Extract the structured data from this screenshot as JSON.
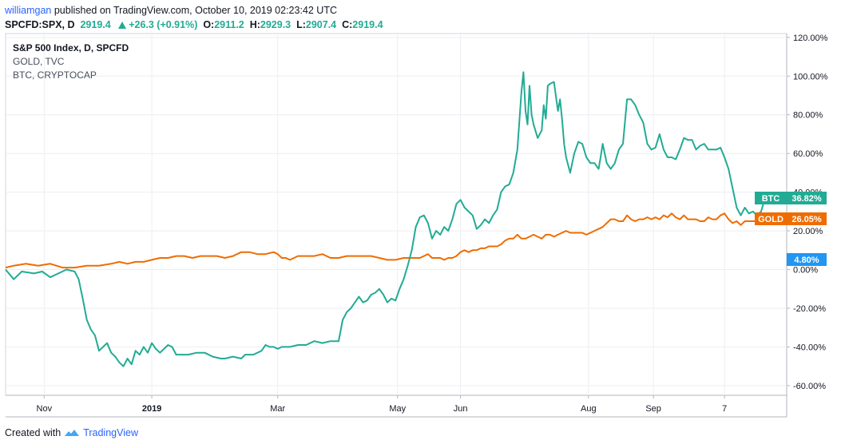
{
  "header": {
    "author": "williamgan",
    "published": "published on TradingView.com, October 10, 2019 02:23:42 UTC"
  },
  "ohlc": {
    "symbol": "SPCFD:SPX, D",
    "last": "2919.4",
    "change": "+26.3 (+0.91%)",
    "o_label": "O:",
    "o": "2911.2",
    "h_label": "H:",
    "h": "2929.3",
    "l_label": "L:",
    "l": "2907.4",
    "c_label": "C:",
    "c": "2919.4"
  },
  "legend": {
    "main": "S&P 500 Index, D, SPCFD",
    "second": "GOLD, TVC",
    "third": "BTC, CRYPTOCAP"
  },
  "footer": {
    "created_with": "Created with",
    "brand": "TradingView"
  },
  "chart_data": {
    "type": "line",
    "ylim": [
      -65,
      122
    ],
    "y_ticks": [
      "120.00%",
      "100.00%",
      "80.00%",
      "60.00%",
      "40.00%",
      "20.00%",
      "0.00%",
      "-20.00%",
      "-40.00%",
      "-60.00%"
    ],
    "y_tick_values": [
      120,
      100,
      80,
      60,
      40,
      20,
      0,
      -20,
      -40,
      -60
    ],
    "x_ticks": [
      {
        "label": "Nov",
        "x": 19
      },
      {
        "label": "2019",
        "x": 72
      },
      {
        "label": "Mar",
        "x": 134
      },
      {
        "label": "May",
        "x": 193
      },
      {
        "label": "Jun",
        "x": 224
      },
      {
        "label": "Aug",
        "x": 287
      },
      {
        "label": "Sep",
        "x": 319
      },
      {
        "label": "7",
        "x": 354
      }
    ],
    "x_range": [
      0,
      374
    ],
    "series": [
      {
        "name": "BTC",
        "color": "#22ab94",
        "last_label": "36.82%",
        "points": [
          [
            0,
            0
          ],
          [
            4,
            -5
          ],
          [
            8,
            -1
          ],
          [
            14,
            -2
          ],
          [
            18,
            -1
          ],
          [
            22,
            -4
          ],
          [
            26,
            -2
          ],
          [
            30,
            0
          ],
          [
            34,
            -1
          ],
          [
            36,
            -5
          ],
          [
            38,
            -15
          ],
          [
            40,
            -26
          ],
          [
            42,
            -31
          ],
          [
            44,
            -34
          ],
          [
            46,
            -42
          ],
          [
            48,
            -40
          ],
          [
            50,
            -38
          ],
          [
            52,
            -43
          ],
          [
            54,
            -45
          ],
          [
            56,
            -48
          ],
          [
            58,
            -50
          ],
          [
            60,
            -46
          ],
          [
            62,
            -49
          ],
          [
            64,
            -42
          ],
          [
            66,
            -44
          ],
          [
            68,
            -40
          ],
          [
            70,
            -43
          ],
          [
            72,
            -38
          ],
          [
            74,
            -41
          ],
          [
            76,
            -43
          ],
          [
            78,
            -41
          ],
          [
            80,
            -39
          ],
          [
            82,
            -40
          ],
          [
            84,
            -44
          ],
          [
            86,
            -44
          ],
          [
            90,
            -44
          ],
          [
            94,
            -43
          ],
          [
            98,
            -43
          ],
          [
            102,
            -45
          ],
          [
            106,
            -46
          ],
          [
            108,
            -46
          ],
          [
            112,
            -45
          ],
          [
            116,
            -46
          ],
          [
            118,
            -44
          ],
          [
            122,
            -44
          ],
          [
            126,
            -42
          ],
          [
            128,
            -39
          ],
          [
            130,
            -40
          ],
          [
            132,
            -40
          ],
          [
            134,
            -41
          ],
          [
            136,
            -40
          ],
          [
            140,
            -40
          ],
          [
            144,
            -39
          ],
          [
            148,
            -39
          ],
          [
            152,
            -37
          ],
          [
            156,
            -38
          ],
          [
            160,
            -37
          ],
          [
            164,
            -37
          ],
          [
            166,
            -26
          ],
          [
            168,
            -22
          ],
          [
            170,
            -20
          ],
          [
            172,
            -17
          ],
          [
            174,
            -14
          ],
          [
            176,
            -17
          ],
          [
            178,
            -16
          ],
          [
            180,
            -13
          ],
          [
            182,
            -12
          ],
          [
            184,
            -10
          ],
          [
            186,
            -13
          ],
          [
            188,
            -17
          ],
          [
            190,
            -15
          ],
          [
            192,
            -16
          ],
          [
            194,
            -10
          ],
          [
            196,
            -5
          ],
          [
            198,
            2
          ],
          [
            200,
            10
          ],
          [
            202,
            22
          ],
          [
            204,
            27
          ],
          [
            206,
            28
          ],
          [
            208,
            24
          ],
          [
            210,
            16
          ],
          [
            212,
            20
          ],
          [
            214,
            18
          ],
          [
            216,
            22
          ],
          [
            218,
            20
          ],
          [
            220,
            26
          ],
          [
            222,
            34
          ],
          [
            224,
            36
          ],
          [
            226,
            32
          ],
          [
            228,
            30
          ],
          [
            230,
            28
          ],
          [
            232,
            21
          ],
          [
            234,
            23
          ],
          [
            236,
            26
          ],
          [
            238,
            24
          ],
          [
            240,
            28
          ],
          [
            242,
            31
          ],
          [
            244,
            40
          ],
          [
            246,
            43
          ],
          [
            248,
            44
          ],
          [
            250,
            50
          ],
          [
            252,
            62
          ],
          [
            254,
            92
          ],
          [
            255,
            102
          ],
          [
            256,
            82
          ],
          [
            257,
            75
          ],
          [
            258,
            95
          ],
          [
            259,
            80
          ],
          [
            260,
            75
          ],
          [
            262,
            68
          ],
          [
            264,
            72
          ],
          [
            265,
            85
          ],
          [
            266,
            78
          ],
          [
            267,
            95
          ],
          [
            268,
            96
          ],
          [
            270,
            97
          ],
          [
            272,
            82
          ],
          [
            273,
            88
          ],
          [
            274,
            78
          ],
          [
            275,
            65
          ],
          [
            276,
            58
          ],
          [
            278,
            50
          ],
          [
            280,
            60
          ],
          [
            282,
            66
          ],
          [
            284,
            65
          ],
          [
            286,
            58
          ],
          [
            288,
            55
          ],
          [
            290,
            55
          ],
          [
            292,
            52
          ],
          [
            293,
            58
          ],
          [
            294,
            65
          ],
          [
            296,
            55
          ],
          [
            298,
            52
          ],
          [
            300,
            55
          ],
          [
            302,
            62
          ],
          [
            304,
            65
          ],
          [
            306,
            88
          ],
          [
            308,
            88
          ],
          [
            310,
            85
          ],
          [
            312,
            80
          ],
          [
            314,
            76
          ],
          [
            316,
            65
          ],
          [
            318,
            62
          ],
          [
            320,
            63
          ],
          [
            322,
            70
          ],
          [
            324,
            62
          ],
          [
            326,
            58
          ],
          [
            328,
            58
          ],
          [
            330,
            57
          ],
          [
            332,
            62
          ],
          [
            334,
            68
          ],
          [
            336,
            67
          ],
          [
            338,
            67
          ],
          [
            340,
            62
          ],
          [
            342,
            64
          ],
          [
            344,
            65
          ],
          [
            346,
            62
          ],
          [
            348,
            62
          ],
          [
            350,
            62
          ],
          [
            352,
            63
          ],
          [
            354,
            58
          ],
          [
            356,
            52
          ],
          [
            358,
            42
          ],
          [
            360,
            32
          ],
          [
            362,
            28
          ],
          [
            364,
            32
          ],
          [
            366,
            29
          ],
          [
            368,
            30
          ],
          [
            370,
            28
          ],
          [
            372,
            30
          ],
          [
            374,
            37
          ]
        ]
      },
      {
        "name": "GOLD",
        "color": "#ef6c00",
        "last_label": "26.05%",
        "points": [
          [
            0,
            1
          ],
          [
            4,
            2
          ],
          [
            10,
            3
          ],
          [
            16,
            2
          ],
          [
            22,
            3
          ],
          [
            28,
            1
          ],
          [
            34,
            1
          ],
          [
            40,
            2
          ],
          [
            46,
            2
          ],
          [
            52,
            3
          ],
          [
            56,
            4
          ],
          [
            60,
            3
          ],
          [
            64,
            4
          ],
          [
            68,
            4
          ],
          [
            72,
            5
          ],
          [
            76,
            6
          ],
          [
            80,
            6
          ],
          [
            84,
            7
          ],
          [
            88,
            7
          ],
          [
            92,
            6
          ],
          [
            96,
            7
          ],
          [
            100,
            7
          ],
          [
            104,
            7
          ],
          [
            108,
            6
          ],
          [
            112,
            7
          ],
          [
            116,
            9
          ],
          [
            120,
            9
          ],
          [
            124,
            8
          ],
          [
            128,
            8
          ],
          [
            132,
            9
          ],
          [
            134,
            8
          ],
          [
            136,
            6
          ],
          [
            138,
            6
          ],
          [
            140,
            5
          ],
          [
            144,
            7
          ],
          [
            148,
            7
          ],
          [
            152,
            7
          ],
          [
            156,
            8
          ],
          [
            160,
            6
          ],
          [
            164,
            6
          ],
          [
            168,
            7
          ],
          [
            172,
            7
          ],
          [
            176,
            7
          ],
          [
            180,
            7
          ],
          [
            184,
            6
          ],
          [
            188,
            5
          ],
          [
            192,
            5
          ],
          [
            196,
            6
          ],
          [
            200,
            6
          ],
          [
            202,
            6
          ],
          [
            204,
            6
          ],
          [
            206,
            7
          ],
          [
            208,
            8
          ],
          [
            210,
            6
          ],
          [
            212,
            6
          ],
          [
            214,
            6
          ],
          [
            216,
            5
          ],
          [
            218,
            6
          ],
          [
            220,
            6
          ],
          [
            222,
            7
          ],
          [
            224,
            9
          ],
          [
            226,
            10
          ],
          [
            228,
            9
          ],
          [
            230,
            10
          ],
          [
            232,
            10
          ],
          [
            234,
            11
          ],
          [
            236,
            11
          ],
          [
            238,
            12
          ],
          [
            240,
            12
          ],
          [
            242,
            12
          ],
          [
            244,
            13
          ],
          [
            246,
            15
          ],
          [
            248,
            16
          ],
          [
            250,
            16
          ],
          [
            252,
            18
          ],
          [
            254,
            16
          ],
          [
            256,
            16
          ],
          [
            258,
            17
          ],
          [
            260,
            18
          ],
          [
            262,
            17
          ],
          [
            264,
            16
          ],
          [
            266,
            18
          ],
          [
            268,
            18
          ],
          [
            270,
            17
          ],
          [
            272,
            18
          ],
          [
            274,
            19
          ],
          [
            276,
            20
          ],
          [
            278,
            19
          ],
          [
            280,
            19
          ],
          [
            282,
            19
          ],
          [
            284,
            19
          ],
          [
            286,
            18
          ],
          [
            288,
            19
          ],
          [
            290,
            20
          ],
          [
            292,
            21
          ],
          [
            294,
            22
          ],
          [
            296,
            24
          ],
          [
            298,
            26
          ],
          [
            300,
            26
          ],
          [
            302,
            25
          ],
          [
            304,
            25
          ],
          [
            306,
            28
          ],
          [
            308,
            26
          ],
          [
            310,
            25
          ],
          [
            312,
            26
          ],
          [
            314,
            26
          ],
          [
            316,
            27
          ],
          [
            318,
            26
          ],
          [
            320,
            27
          ],
          [
            322,
            26
          ],
          [
            324,
            28
          ],
          [
            326,
            27
          ],
          [
            328,
            29
          ],
          [
            330,
            27
          ],
          [
            332,
            26
          ],
          [
            334,
            28
          ],
          [
            336,
            26
          ],
          [
            338,
            26
          ],
          [
            340,
            26
          ],
          [
            342,
            25
          ],
          [
            344,
            25
          ],
          [
            346,
            27
          ],
          [
            348,
            26
          ],
          [
            350,
            26
          ],
          [
            352,
            28
          ],
          [
            354,
            29
          ],
          [
            356,
            26
          ],
          [
            358,
            24
          ],
          [
            360,
            25
          ],
          [
            362,
            23
          ],
          [
            364,
            25
          ],
          [
            366,
            25
          ],
          [
            368,
            25
          ],
          [
            370,
            25
          ],
          [
            372,
            25
          ],
          [
            374,
            26
          ]
        ]
      },
      {
        "name": "S&P 500",
        "color": "#2196f3",
        "last_label": "4.80%"
      }
    ]
  }
}
